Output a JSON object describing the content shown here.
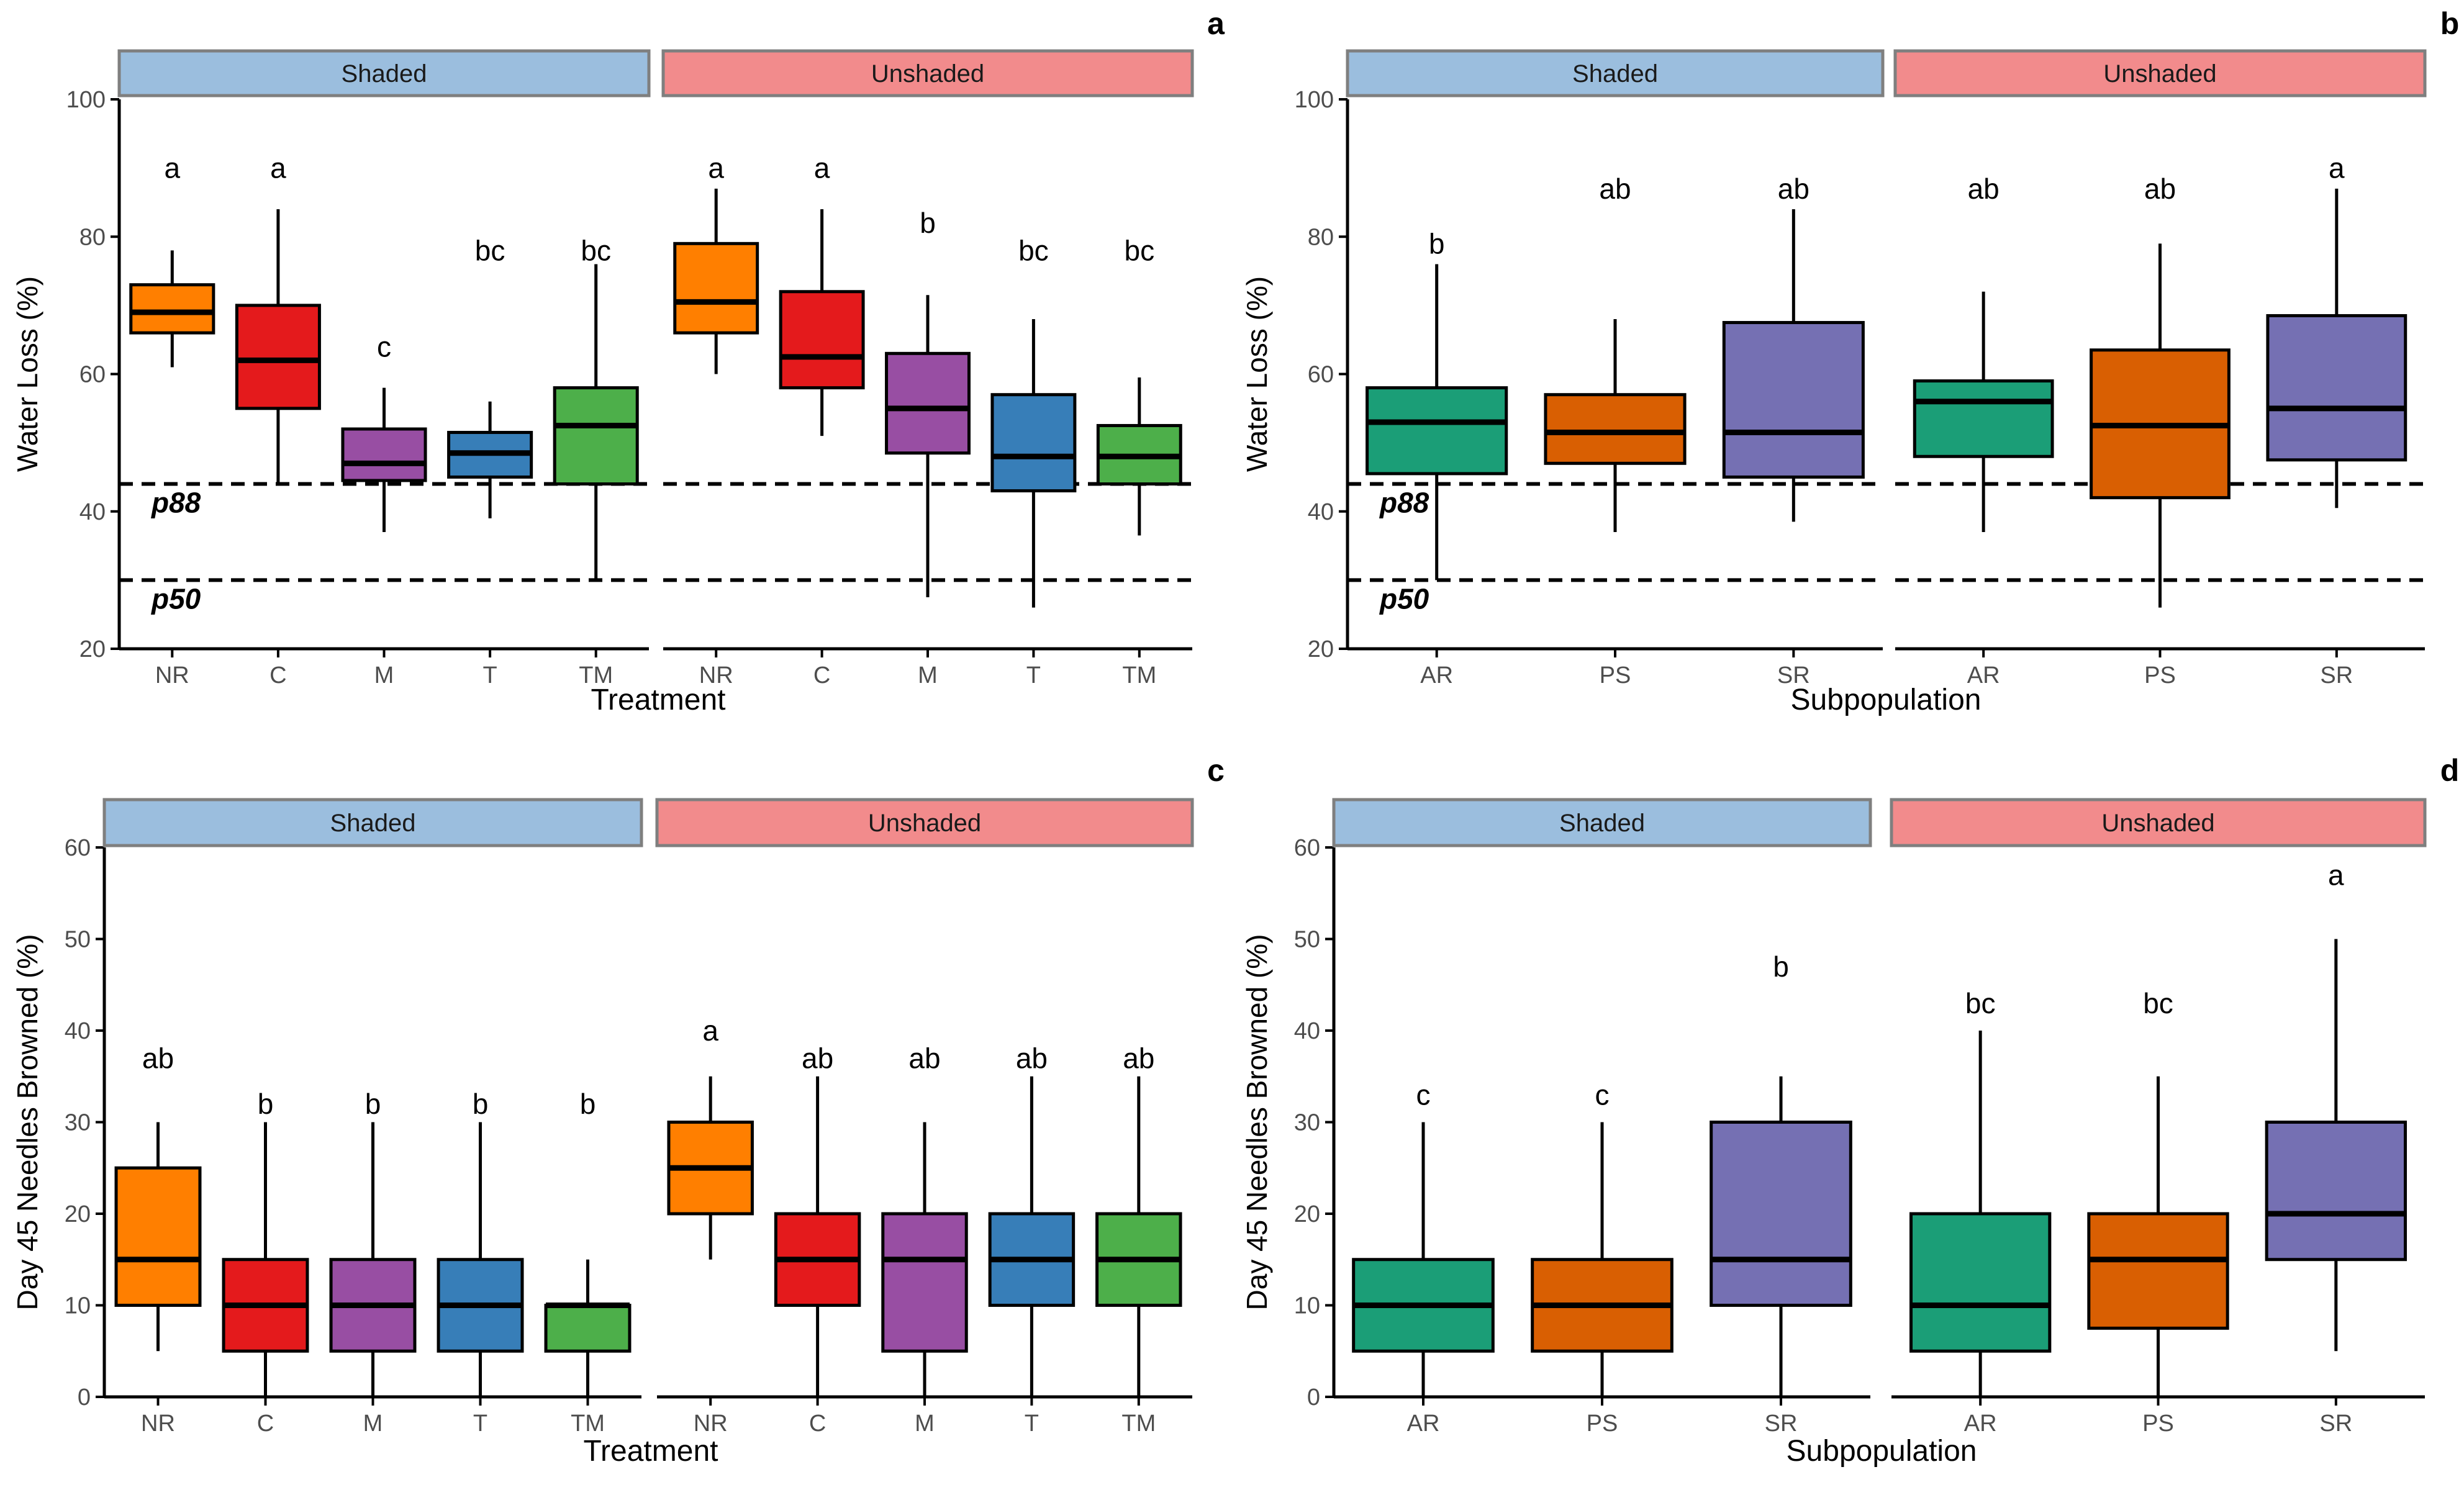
{
  "chart_data": [
    {
      "panel_tag": "a",
      "type": "box",
      "ylabel": "Water Loss (%)",
      "xlabel": "Treatment",
      "ylim": [
        20,
        100
      ],
      "yticks": [
        20,
        40,
        60,
        80,
        100
      ],
      "hlines": [
        {
          "value": 44,
          "label": "p88"
        },
        {
          "value": 30,
          "label": "p50"
        }
      ],
      "facets": [
        {
          "label": "Shaded",
          "boxes": [
            {
              "category": "NR",
              "color": "#FF7F00",
              "whisker_low": 61,
              "q1": 66,
              "median": 69,
              "q3": 73,
              "whisker_high": 78,
              "letter": "a",
              "letter_y": 90
            },
            {
              "category": "C",
              "color": "#E41A1C",
              "whisker_low": 44,
              "q1": 55,
              "median": 62,
              "q3": 70,
              "whisker_high": 84,
              "letter": "a",
              "letter_y": 90
            },
            {
              "category": "M",
              "color": "#984EA3",
              "whisker_low": 37,
              "q1": 44.5,
              "median": 47,
              "q3": 52,
              "whisker_high": 58,
              "letter": "c",
              "letter_y": 64
            },
            {
              "category": "T",
              "color": "#377EB8",
              "whisker_low": 39,
              "q1": 45,
              "median": 48.5,
              "q3": 51.5,
              "whisker_high": 56,
              "letter": "bc",
              "letter_y": 78
            },
            {
              "category": "TM",
              "color": "#4DAF4A",
              "whisker_low": 30,
              "q1": 44,
              "median": 52.5,
              "q3": 58,
              "whisker_high": 76,
              "letter": "bc",
              "letter_y": 78
            }
          ]
        },
        {
          "label": "Unshaded",
          "boxes": [
            {
              "category": "NR",
              "color": "#FF7F00",
              "whisker_low": 60,
              "q1": 66,
              "median": 70.5,
              "q3": 79,
              "whisker_high": 87,
              "letter": "a",
              "letter_y": 90
            },
            {
              "category": "C",
              "color": "#E41A1C",
              "whisker_low": 51,
              "q1": 58,
              "median": 62.5,
              "q3": 72,
              "whisker_high": 84,
              "letter": "a",
              "letter_y": 90
            },
            {
              "category": "M",
              "color": "#984EA3",
              "whisker_low": 27.5,
              "q1": 48.5,
              "median": 55,
              "q3": 63,
              "whisker_high": 71.5,
              "letter": "b",
              "letter_y": 82
            },
            {
              "category": "T",
              "color": "#377EB8",
              "whisker_low": 26,
              "q1": 43,
              "median": 48,
              "q3": 57,
              "whisker_high": 68,
              "letter": "bc",
              "letter_y": 78
            },
            {
              "category": "TM",
              "color": "#4DAF4A",
              "whisker_low": 36.5,
              "q1": 44,
              "median": 48,
              "q3": 52.5,
              "whisker_high": 59.5,
              "letter": "bc",
              "letter_y": 78
            }
          ]
        }
      ]
    },
    {
      "panel_tag": "b",
      "type": "box",
      "ylabel": "Water Loss (%)",
      "xlabel": "Subpopulation",
      "ylim": [
        20,
        100
      ],
      "yticks": [
        20,
        40,
        60,
        80,
        100
      ],
      "hlines": [
        {
          "value": 44,
          "label": "p88"
        },
        {
          "value": 30,
          "label": "p50"
        }
      ],
      "facets": [
        {
          "label": "Shaded",
          "boxes": [
            {
              "category": "AR",
              "color": "#1B9E77",
              "whisker_low": 30,
              "q1": 45.5,
              "median": 53,
              "q3": 58,
              "whisker_high": 76,
              "letter": "b",
              "letter_y": 79
            },
            {
              "category": "PS",
              "color": "#D95F02",
              "whisker_low": 37,
              "q1": 47,
              "median": 51.5,
              "q3": 57,
              "whisker_high": 68,
              "letter": "ab",
              "letter_y": 87
            },
            {
              "category": "SR",
              "color": "#7570B3",
              "whisker_low": 38.5,
              "q1": 45,
              "median": 51.5,
              "q3": 67.5,
              "whisker_high": 84,
              "letter": "ab",
              "letter_y": 87
            }
          ]
        },
        {
          "label": "Unshaded",
          "boxes": [
            {
              "category": "AR",
              "color": "#1B9E77",
              "whisker_low": 37,
              "q1": 48,
              "median": 56,
              "q3": 59,
              "whisker_high": 72,
              "letter": "ab",
              "letter_y": 87
            },
            {
              "category": "PS",
              "color": "#D95F02",
              "whisker_low": 26,
              "q1": 42,
              "median": 52.5,
              "q3": 63.5,
              "whisker_high": 79,
              "letter": "ab",
              "letter_y": 87
            },
            {
              "category": "SR",
              "color": "#7570B3",
              "whisker_low": 40.5,
              "q1": 47.5,
              "median": 55,
              "q3": 68.5,
              "whisker_high": 87,
              "letter": "a",
              "letter_y": 90
            }
          ]
        }
      ]
    },
    {
      "panel_tag": "c",
      "type": "box",
      "ylabel": "Day 45 Needles Browned (%)",
      "xlabel": "Treatment",
      "ylim": [
        0,
        60
      ],
      "yticks": [
        0,
        10,
        20,
        30,
        40,
        50,
        60
      ],
      "hlines": [],
      "facets": [
        {
          "label": "Shaded",
          "boxes": [
            {
              "category": "NR",
              "color": "#FF7F00",
              "whisker_low": 5,
              "q1": 10,
              "median": 15,
              "q3": 25,
              "whisker_high": 30,
              "letter": "ab",
              "letter_y": 37
            },
            {
              "category": "C",
              "color": "#E41A1C",
              "whisker_low": 0,
              "q1": 5,
              "median": 10,
              "q3": 15,
              "whisker_high": 30,
              "letter": "b",
              "letter_y": 32
            },
            {
              "category": "M",
              "color": "#984EA3",
              "whisker_low": 0,
              "q1": 5,
              "median": 10,
              "q3": 15,
              "whisker_high": 30,
              "letter": "b",
              "letter_y": 32
            },
            {
              "category": "T",
              "color": "#377EB8",
              "whisker_low": 0,
              "q1": 5,
              "median": 10,
              "q3": 15,
              "whisker_high": 30,
              "letter": "b",
              "letter_y": 32
            },
            {
              "category": "TM",
              "color": "#4DAF4A",
              "whisker_low": 0,
              "q1": 5,
              "median": 10,
              "q3": 10,
              "whisker_high": 15,
              "letter": "b",
              "letter_y": 32
            }
          ]
        },
        {
          "label": "Unshaded",
          "boxes": [
            {
              "category": "NR",
              "color": "#FF7F00",
              "whisker_low": 15,
              "q1": 20,
              "median": 25,
              "q3": 30,
              "whisker_high": 35,
              "letter": "a",
              "letter_y": 40
            },
            {
              "category": "C",
              "color": "#E41A1C",
              "whisker_low": 0,
              "q1": 10,
              "median": 15,
              "q3": 20,
              "whisker_high": 35,
              "letter": "ab",
              "letter_y": 37
            },
            {
              "category": "M",
              "color": "#984EA3",
              "whisker_low": 0,
              "q1": 5,
              "median": 15,
              "q3": 20,
              "whisker_high": 30,
              "letter": "ab",
              "letter_y": 37
            },
            {
              "category": "T",
              "color": "#377EB8",
              "whisker_low": 0,
              "q1": 10,
              "median": 15,
              "q3": 20,
              "whisker_high": 35,
              "letter": "ab",
              "letter_y": 37
            },
            {
              "category": "TM",
              "color": "#4DAF4A",
              "whisker_low": 0,
              "q1": 10,
              "median": 15,
              "q3": 20,
              "whisker_high": 35,
              "letter": "ab",
              "letter_y": 37
            }
          ]
        }
      ]
    },
    {
      "panel_tag": "d",
      "type": "box",
      "ylabel": "Day 45 Needles Browned (%)",
      "xlabel": "Subpopulation",
      "ylim": [
        0,
        60
      ],
      "yticks": [
        0,
        10,
        20,
        30,
        40,
        50,
        60
      ],
      "hlines": [],
      "facets": [
        {
          "label": "Shaded",
          "boxes": [
            {
              "category": "AR",
              "color": "#1B9E77",
              "whisker_low": 0,
              "q1": 5,
              "median": 10,
              "q3": 15,
              "whisker_high": 30,
              "letter": "c",
              "letter_y": 33
            },
            {
              "category": "PS",
              "color": "#D95F02",
              "whisker_low": 0,
              "q1": 5,
              "median": 10,
              "q3": 15,
              "whisker_high": 30,
              "letter": "c",
              "letter_y": 33
            },
            {
              "category": "SR",
              "color": "#7570B3",
              "whisker_low": 0,
              "q1": 10,
              "median": 15,
              "q3": 30,
              "whisker_high": 35,
              "letter": "b",
              "letter_y": 47
            }
          ]
        },
        {
          "label": "Unshaded",
          "boxes": [
            {
              "category": "AR",
              "color": "#1B9E77",
              "whisker_low": 0,
              "q1": 5,
              "median": 10,
              "q3": 20,
              "whisker_high": 40,
              "letter": "bc",
              "letter_y": 43
            },
            {
              "category": "PS",
              "color": "#D95F02",
              "whisker_low": 0,
              "q1": 7.5,
              "median": 15,
              "q3": 20,
              "whisker_high": 35,
              "letter": "bc",
              "letter_y": 43
            },
            {
              "category": "SR",
              "color": "#7570B3",
              "whisker_low": 5,
              "q1": 15,
              "median": 20,
              "q3": 30,
              "whisker_high": 50,
              "letter": "a",
              "letter_y": 57
            }
          ]
        }
      ]
    }
  ],
  "style": {
    "shaded_strip_color": "#9BBEDE",
    "unshaded_strip_color": "#F28B8C",
    "strip_border_color": "#7F7F7F",
    "axis_color": "#000000",
    "tick_label_color": "#4D4D4D"
  }
}
